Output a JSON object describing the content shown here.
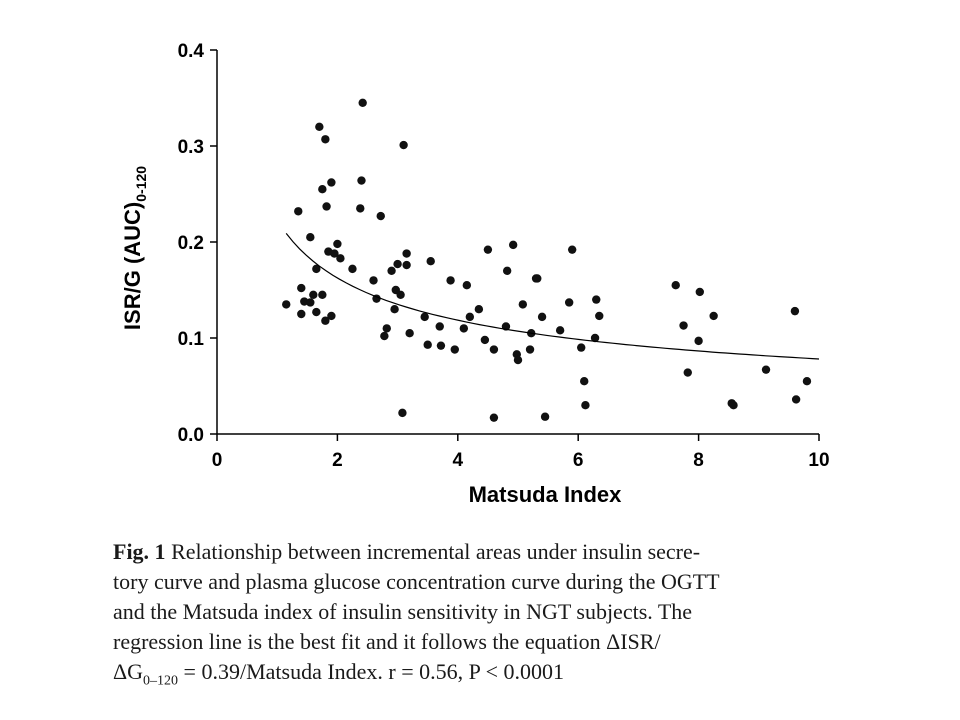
{
  "chart_data": {
    "type": "scatter",
    "xlabel": "Matsuda Index",
    "ylabel_main": "ISR/G (AUC)",
    "ylabel_sub": "0-120",
    "xlim": [
      0,
      10
    ],
    "ylim": [
      0,
      0.4
    ],
    "xticks": [
      "0",
      "2",
      "4",
      "6",
      "8",
      "10"
    ],
    "yticks": [
      "0.0",
      "0.1",
      "0.2",
      "0.3",
      "0.4"
    ],
    "points": [
      [
        1.15,
        0.135
      ],
      [
        1.35,
        0.232
      ],
      [
        1.4,
        0.152
      ],
      [
        1.4,
        0.125
      ],
      [
        1.45,
        0.138
      ],
      [
        1.55,
        0.205
      ],
      [
        1.55,
        0.137
      ],
      [
        1.6,
        0.145
      ],
      [
        1.65,
        0.127
      ],
      [
        1.65,
        0.172
      ],
      [
        1.7,
        0.32
      ],
      [
        1.75,
        0.145
      ],
      [
        1.75,
        0.255
      ],
      [
        1.8,
        0.307
      ],
      [
        1.8,
        0.118
      ],
      [
        1.82,
        0.237
      ],
      [
        1.85,
        0.19
      ],
      [
        1.9,
        0.262
      ],
      [
        1.9,
        0.123
      ],
      [
        1.95,
        0.188
      ],
      [
        2.0,
        0.198
      ],
      [
        2.05,
        0.183
      ],
      [
        2.25,
        0.172
      ],
      [
        2.38,
        0.235
      ],
      [
        2.4,
        0.264
      ],
      [
        2.42,
        0.345
      ],
      [
        2.6,
        0.16
      ],
      [
        2.65,
        0.141
      ],
      [
        2.72,
        0.227
      ],
      [
        2.78,
        0.102
      ],
      [
        2.82,
        0.11
      ],
      [
        2.9,
        0.17
      ],
      [
        2.95,
        0.13
      ],
      [
        2.97,
        0.15
      ],
      [
        3.0,
        0.177
      ],
      [
        3.05,
        0.145
      ],
      [
        3.08,
        0.022
      ],
      [
        3.1,
        0.301
      ],
      [
        3.15,
        0.188
      ],
      [
        3.15,
        0.176
      ],
      [
        3.2,
        0.105
      ],
      [
        3.45,
        0.122
      ],
      [
        3.5,
        0.093
      ],
      [
        3.55,
        0.18
      ],
      [
        3.7,
        0.112
      ],
      [
        3.72,
        0.092
      ],
      [
        3.88,
        0.16
      ],
      [
        3.95,
        0.088
      ],
      [
        4.1,
        0.11
      ],
      [
        4.15,
        0.155
      ],
      [
        4.2,
        0.122
      ],
      [
        4.35,
        0.13
      ],
      [
        4.45,
        0.098
      ],
      [
        4.5,
        0.192
      ],
      [
        4.6,
        0.088
      ],
      [
        4.6,
        0.017
      ],
      [
        4.8,
        0.112
      ],
      [
        4.82,
        0.17
      ],
      [
        4.92,
        0.197
      ],
      [
        4.98,
        0.083
      ],
      [
        5.0,
        0.077
      ],
      [
        5.08,
        0.135
      ],
      [
        5.2,
        0.088
      ],
      [
        5.22,
        0.105
      ],
      [
        5.3,
        0.162
      ],
      [
        5.32,
        0.162
      ],
      [
        5.4,
        0.122
      ],
      [
        5.45,
        0.018
      ],
      [
        5.7,
        0.108
      ],
      [
        5.85,
        0.137
      ],
      [
        5.9,
        0.192
      ],
      [
        6.05,
        0.09
      ],
      [
        6.1,
        0.055
      ],
      [
        6.12,
        0.03
      ],
      [
        6.28,
        0.1
      ],
      [
        6.3,
        0.14
      ],
      [
        6.35,
        0.123
      ],
      [
        7.62,
        0.155
      ],
      [
        7.75,
        0.113
      ],
      [
        7.82,
        0.064
      ],
      [
        8.0,
        0.097
      ],
      [
        8.02,
        0.148
      ],
      [
        8.25,
        0.123
      ],
      [
        8.55,
        0.032
      ],
      [
        8.58,
        0.03
      ],
      [
        9.12,
        0.067
      ],
      [
        9.6,
        0.128
      ],
      [
        9.62,
        0.036
      ],
      [
        9.8,
        0.055
      ]
    ],
    "fit": {
      "form": "y = a / x",
      "a": 0.39,
      "x_range": [
        1.15,
        10
      ]
    },
    "grid": false,
    "legend": "none"
  },
  "caption": {
    "lead": "Fig. 1",
    "lines": [
      " Relationship between incremental areas under insulin secre-",
      "tory curve and plasma glucose concentration curve during the OGTT",
      "and the Matsuda index of insulin sensitivity in NGT subjects. The",
      "regression line is the best fit and it follows the equation ΔISR/"
    ],
    "last_pre": "ΔG",
    "last_sub": "0–120",
    "last_post": " = 0.39/Matsuda Index. r = 0.56, P < 0.0001"
  }
}
